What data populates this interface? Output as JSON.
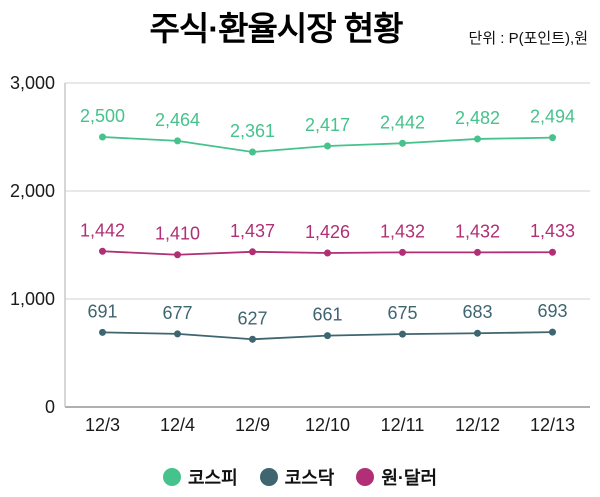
{
  "title": "주식·환율시장 현황",
  "unit_label": "단위 : P(포인트),원",
  "chart_data": {
    "type": "line",
    "categories": [
      "12/3",
      "12/4",
      "12/9",
      "12/10",
      "12/11",
      "12/12",
      "12/13"
    ],
    "series": [
      {
        "name": "코스피",
        "color": "#46c28c",
        "values": [
          2500,
          2464,
          2361,
          2417,
          2442,
          2482,
          2494
        ],
        "labels": [
          "2,500",
          "2,464",
          "2,361",
          "2,417",
          "2,442",
          "2,482",
          "2,494"
        ]
      },
      {
        "name": "원·달러",
        "color": "#b02f75",
        "values": [
          1442,
          1410,
          1437,
          1426,
          1432,
          1432,
          1433
        ],
        "labels": [
          "1,442",
          "1,410",
          "1,437",
          "1,426",
          "1,432",
          "1,432",
          "1,433"
        ]
      },
      {
        "name": "코스닥",
        "color": "#3e6570",
        "values": [
          691,
          677,
          627,
          661,
          675,
          683,
          693
        ],
        "labels": [
          "691",
          "677",
          "627",
          "661",
          "675",
          "683",
          "693"
        ]
      }
    ],
    "y_ticks": [
      {
        "value": 0,
        "label": "0"
      },
      {
        "value": 1000,
        "label": "1,000"
      },
      {
        "value": 2000,
        "label": "2,000"
      },
      {
        "value": 3000,
        "label": "3,000"
      }
    ],
    "ylim": [
      0,
      3000
    ],
    "grid": true,
    "legend_position": "bottom",
    "legend": [
      {
        "label": "코스피",
        "color": "#46c28c"
      },
      {
        "label": "코스닥",
        "color": "#3e6570"
      },
      {
        "label": "원·달러",
        "color": "#b02f75"
      }
    ],
    "colors": {
      "gridline": "#dadada",
      "y_axis": "#c9c9c9",
      "x_axis": "#b0b0b0",
      "tick_text": "#1a1a1a"
    }
  }
}
